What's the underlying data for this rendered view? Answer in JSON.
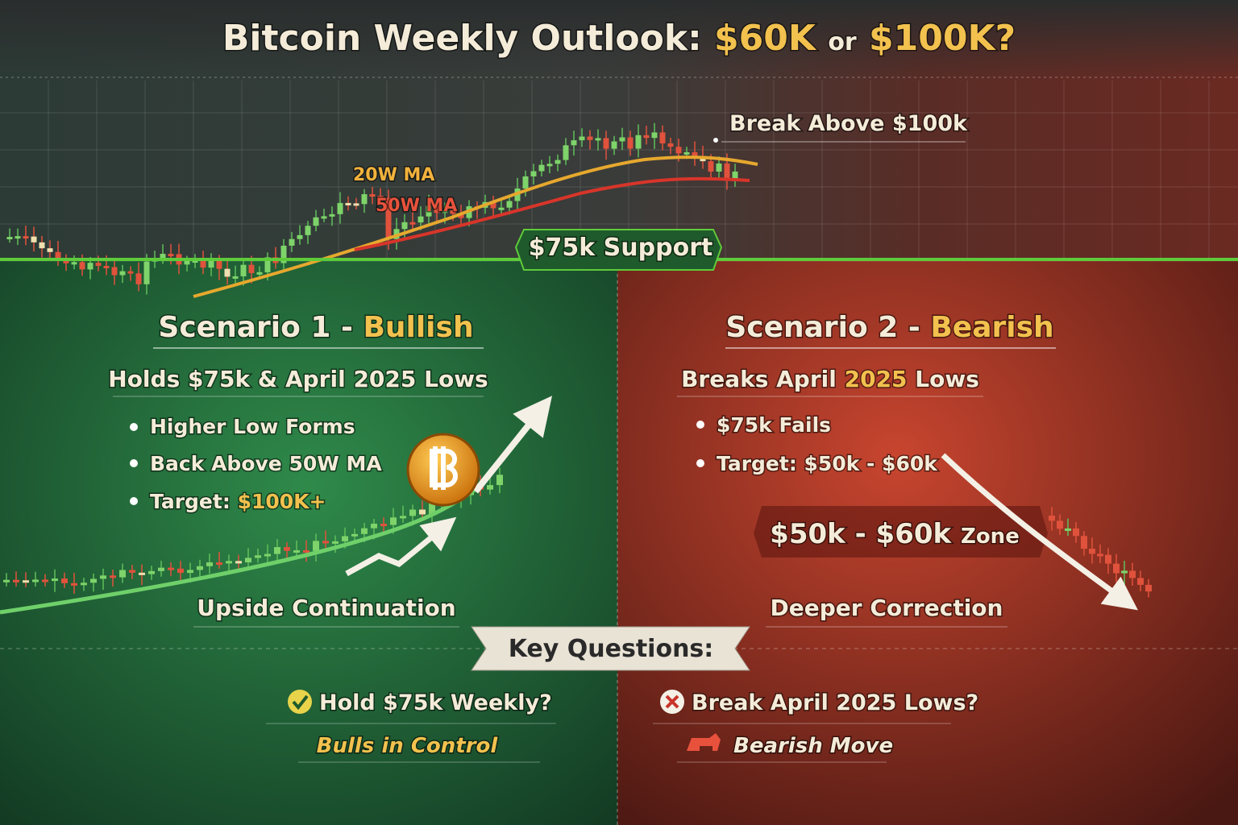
{
  "title": {
    "lead": "Bitcoin Weekly Outlook:",
    "low": "$60K",
    "joiner": "or",
    "high": "$100K?"
  },
  "chart": {
    "breakout": "Break Above $100k",
    "ma_fast": "20W MA",
    "ma_slow": "50W MA",
    "support": "$75k Support"
  },
  "scenario_1": {
    "title": "Scenario 1 -",
    "tag": "Bullish",
    "headline": "Holds $75k & April 2025 Lows",
    "bullets": [
      "Higher Low Forms",
      "Back Above 50W MA"
    ],
    "target_label": "Target:",
    "target_value": "$100K+",
    "caption": "Upside Continuation"
  },
  "scenario_2": {
    "title": "Scenario 2 -",
    "tag": "Bearish",
    "headline_lead": "Breaks April",
    "headline_year": "2025",
    "headline_tail": "Lows",
    "bullets": [
      "$75k Fails",
      "Target: $50k - $60k"
    ],
    "zone_range": "$50k - $60k",
    "zone_word": "Zone",
    "caption": "Deeper Correction"
  },
  "key_questions": {
    "title": "Key Questions:",
    "bull_question": "Hold $75k Weekly?",
    "bull_answer": "Bulls in Control",
    "bear_question": "Break April 2025 Lows?",
    "bear_answer": "Bearish Move"
  }
}
